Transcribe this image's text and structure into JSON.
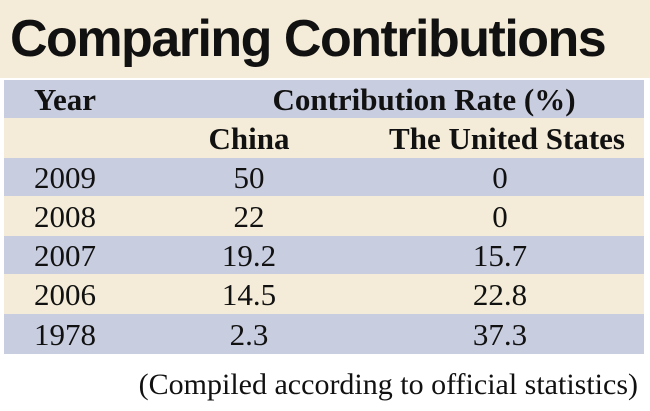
{
  "chart_data": {
    "type": "table",
    "title": "Comparing Contributions",
    "header": {
      "year": "Year",
      "group": "Contribution Rate (%)",
      "china": "China",
      "us": "The United States"
    },
    "rows": [
      {
        "year": "2009",
        "china": "50",
        "us": "0"
      },
      {
        "year": "2008",
        "china": "22",
        "us": "0"
      },
      {
        "year": "2007",
        "china": "19.2",
        "us": "15.7"
      },
      {
        "year": "2006",
        "china": "14.5",
        "us": "22.8"
      },
      {
        "year": "1978",
        "china": "2.3",
        "us": "37.3"
      }
    ],
    "footnote": "(Compiled according to official statistics)"
  },
  "colors": {
    "title_bg": "#f4ecd8",
    "row_blue": "#c8cde0",
    "row_cream": "#f4ecd8"
  }
}
